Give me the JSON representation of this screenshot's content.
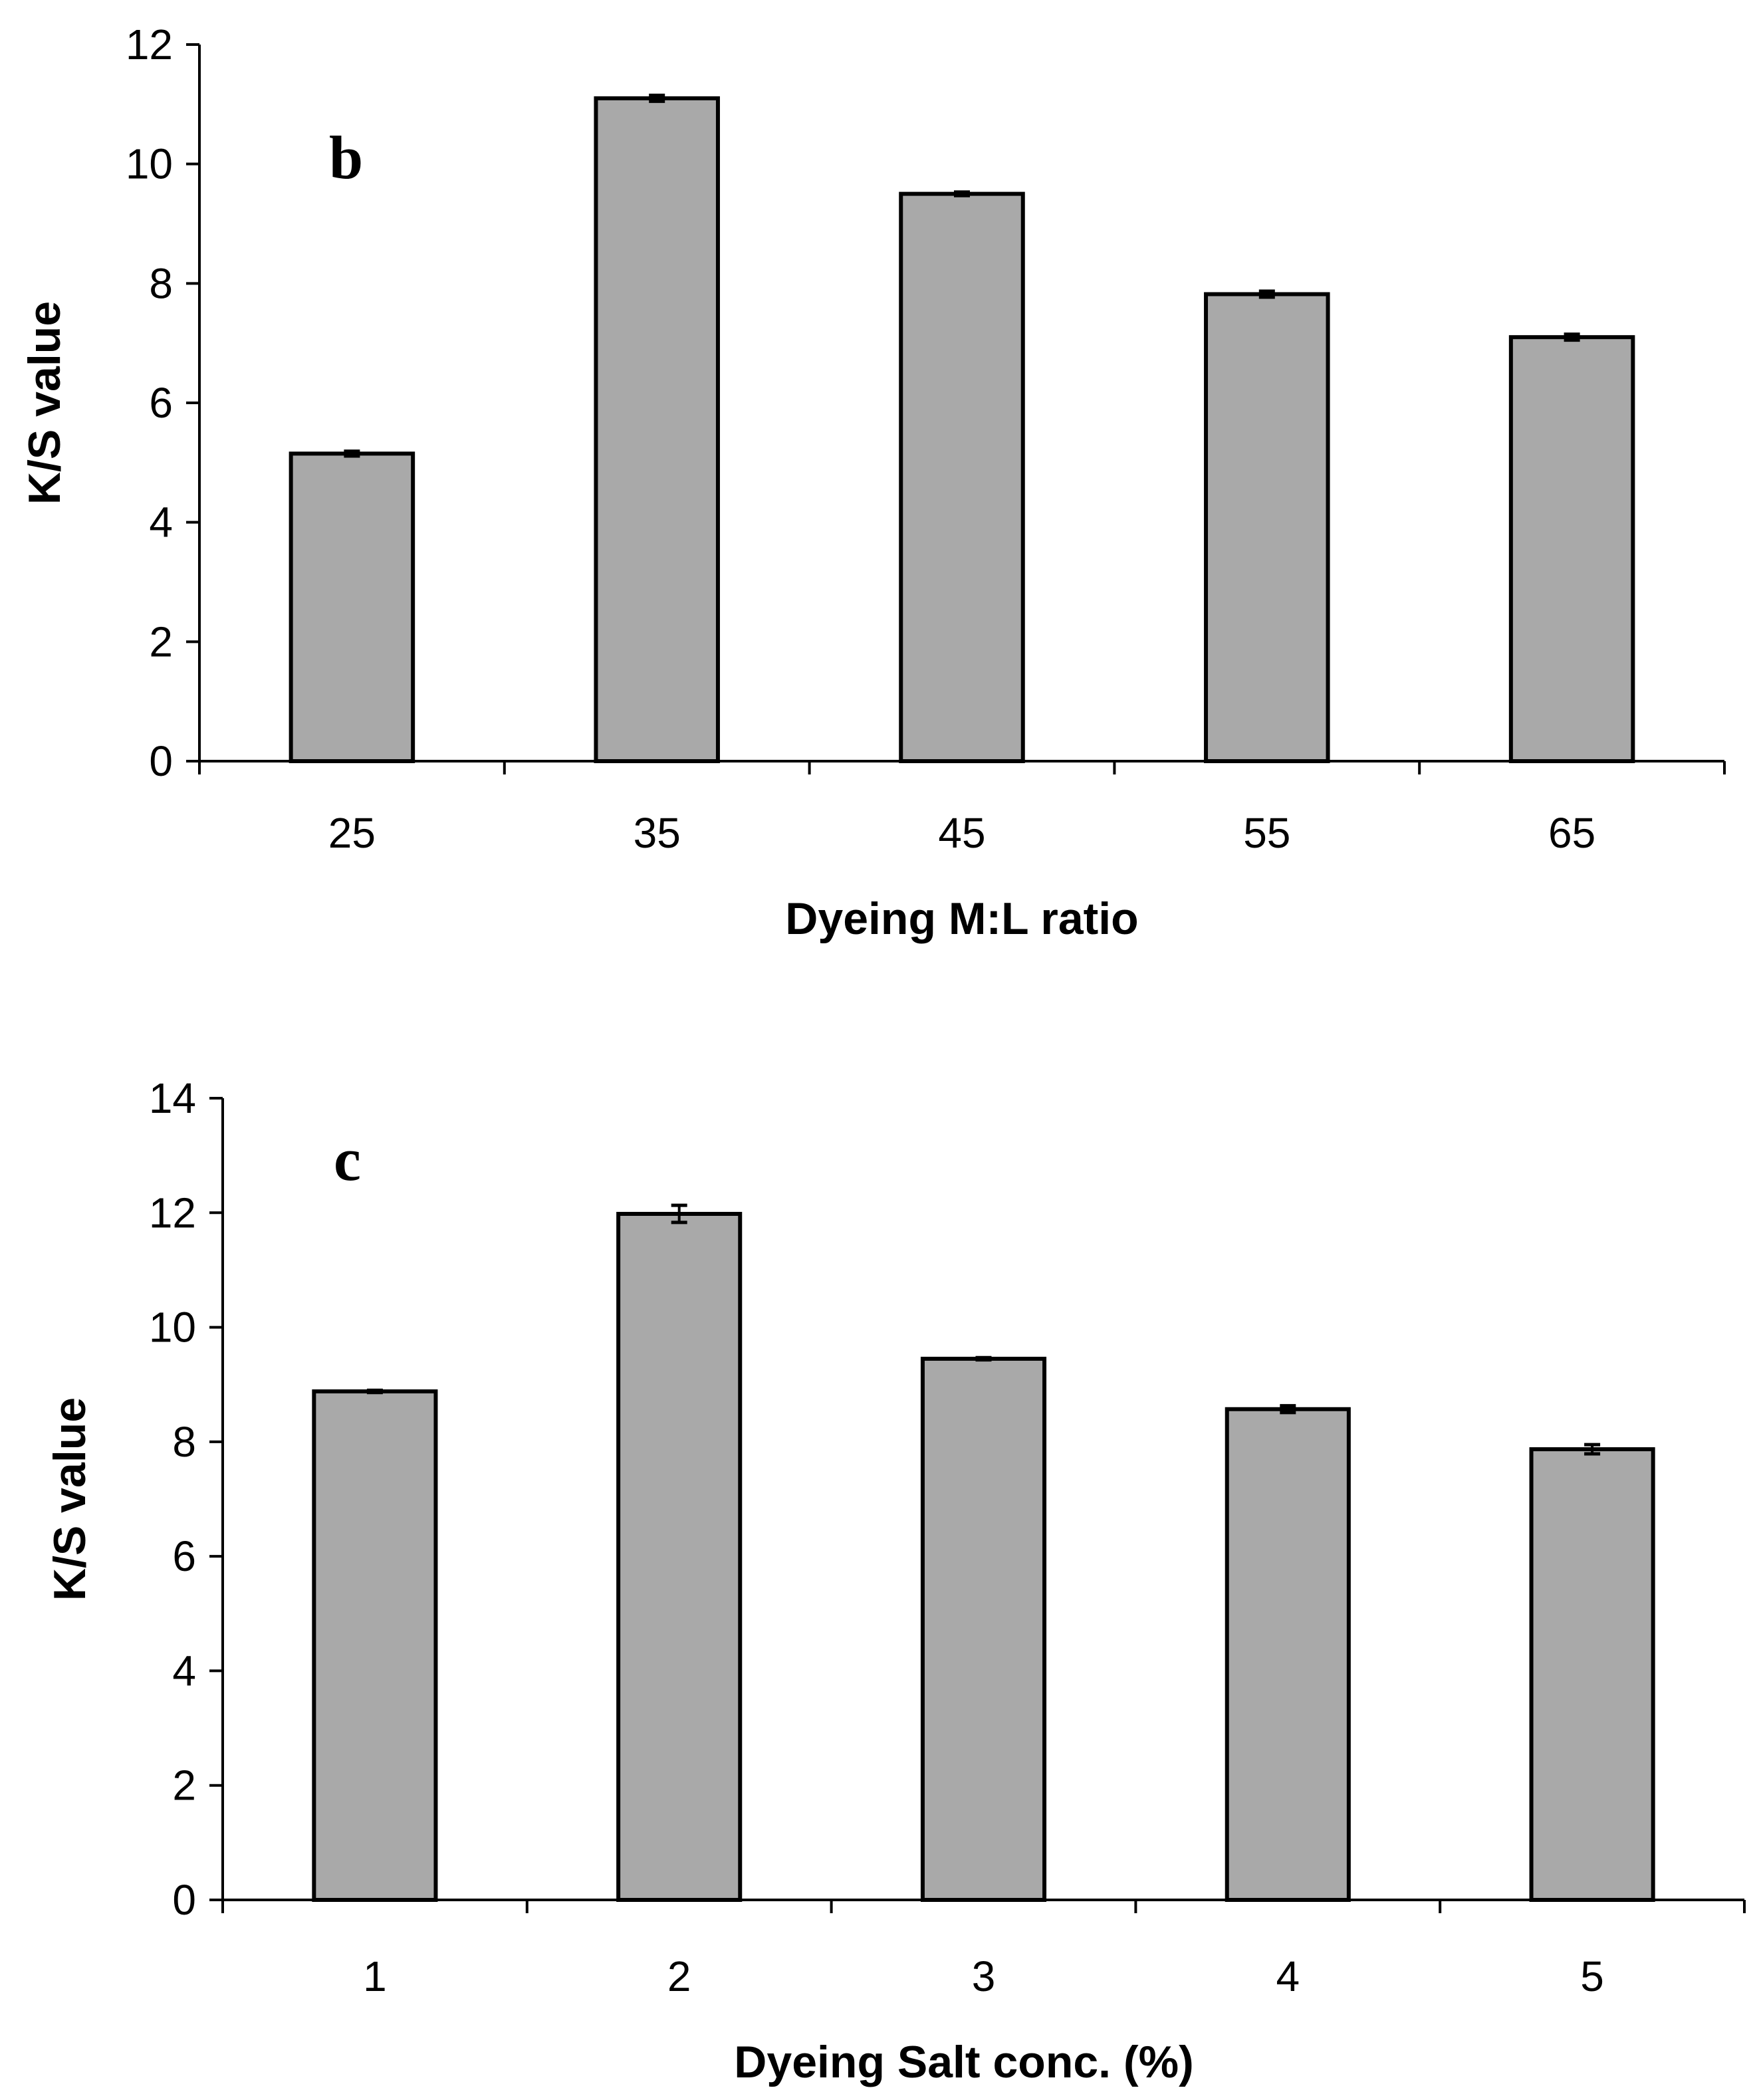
{
  "chart_data": [
    {
      "type": "bar",
      "panel_label": "b",
      "xlabel": "Dyeing M:L ratio",
      "ylabel": "K/S value",
      "categories": [
        "25",
        "35",
        "45",
        "55",
        "65"
      ],
      "values": [
        5.15,
        11.1,
        9.5,
        7.82,
        7.1
      ],
      "errors": [
        0.04,
        0.05,
        0.03,
        0.05,
        0.05
      ],
      "ylim": [
        0,
        12
      ],
      "yticks": [
        0,
        2,
        4,
        6,
        8,
        10,
        12
      ],
      "grid": false,
      "bar_color": "#a9a9a9"
    },
    {
      "type": "bar",
      "panel_label": "c",
      "xlabel": "Dyeing Salt conc. (%)",
      "ylabel": "K/S value",
      "categories": [
        "1",
        "2",
        "3",
        "4",
        "5"
      ],
      "values": [
        8.88,
        11.98,
        9.45,
        8.57,
        7.87
      ],
      "errors": [
        0.02,
        0.15,
        0.02,
        0.06,
        0.08
      ],
      "ylim": [
        0,
        14
      ],
      "yticks": [
        0,
        2,
        4,
        6,
        8,
        10,
        12,
        14
      ],
      "grid": false,
      "bar_color": "#a9a9a9"
    }
  ]
}
